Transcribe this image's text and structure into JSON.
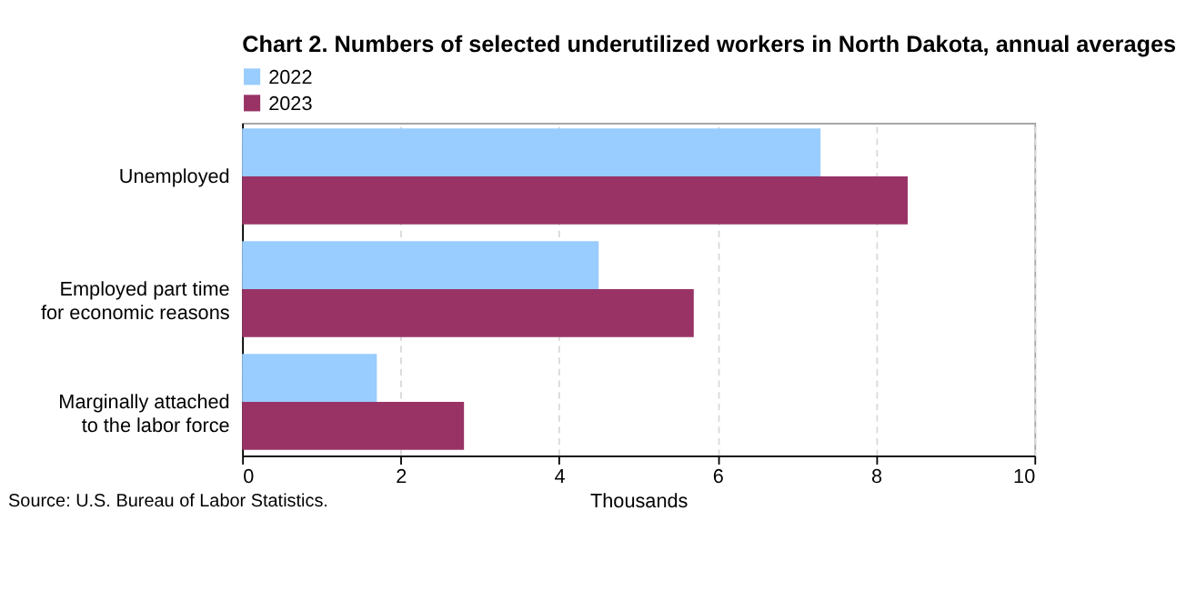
{
  "chart_data": {
    "type": "bar",
    "orientation": "horizontal",
    "title": "Chart 2. Numbers of selected underutilized workers in North Dakota, annual averages",
    "categories": [
      "Unemployed",
      "Employed part time\nfor economic reasons",
      "Marginally attached\nto the labor force"
    ],
    "series": [
      {
        "name": "2022",
        "color": "#99ccff",
        "values": [
          7.3,
          4.5,
          1.7
        ]
      },
      {
        "name": "2023",
        "color": "#993366",
        "values": [
          8.4,
          5.7,
          2.8
        ]
      }
    ],
    "xlabel": "Thousands",
    "xlim": [
      0,
      10
    ],
    "xticks": [
      0,
      2,
      4,
      6,
      8,
      10
    ],
    "grid": "x",
    "legend": "top",
    "annotations": [
      "Source: U.S. Bureau of Labor Statistics."
    ]
  }
}
